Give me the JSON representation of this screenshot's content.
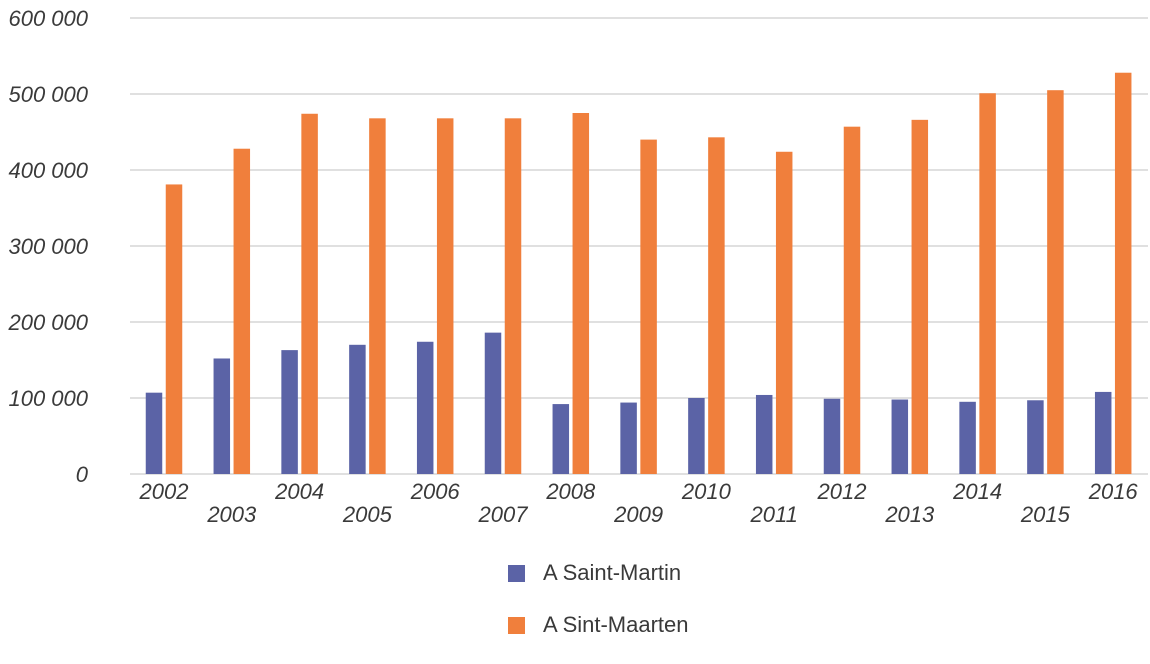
{
  "chart_data": {
    "type": "bar",
    "categories": [
      "2002",
      "2003",
      "2004",
      "2005",
      "2006",
      "2007",
      "2008",
      "2009",
      "2010",
      "2011",
      "2012",
      "2013",
      "2014",
      "2015",
      "2016"
    ],
    "series": [
      {
        "name": "A Saint-Martin",
        "color": "#5b63a6",
        "values": [
          107000,
          152000,
          163000,
          170000,
          174000,
          186000,
          92000,
          94000,
          100000,
          104000,
          99000,
          98000,
          95000,
          97000,
          108000
        ]
      },
      {
        "name": "A Sint-Maarten",
        "color": "#f07f3c",
        "values": [
          381000,
          428000,
          474000,
          468000,
          468000,
          468000,
          475000,
          440000,
          443000,
          424000,
          457000,
          466000,
          501000,
          505000,
          528000
        ]
      }
    ],
    "yticks": [
      "0",
      "100 000",
      "200 000",
      "300 000",
      "400 000",
      "500 000",
      "600 000"
    ],
    "ylim": [
      0,
      600000
    ],
    "grid": true,
    "legend": "bottom-center",
    "title": "",
    "xlabel": "",
    "ylabel": ""
  }
}
